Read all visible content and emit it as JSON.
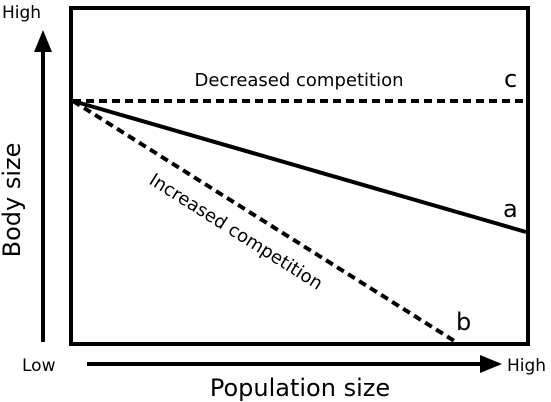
{
  "axes": {
    "x_label": "Population size",
    "y_label": "Body size",
    "x_high": "High",
    "y_high": "High",
    "origin_low": "Low"
  },
  "lines": [
    {
      "id": "a",
      "label": "a",
      "style": "solid",
      "caption": ""
    },
    {
      "id": "b",
      "label": "b",
      "style": "dashed",
      "caption": "Increased competition"
    },
    {
      "id": "c",
      "label": "c",
      "style": "dashed",
      "caption": "Decreased competition"
    }
  ],
  "colors": {
    "stroke": "#000000",
    "background": "#ffffff"
  }
}
